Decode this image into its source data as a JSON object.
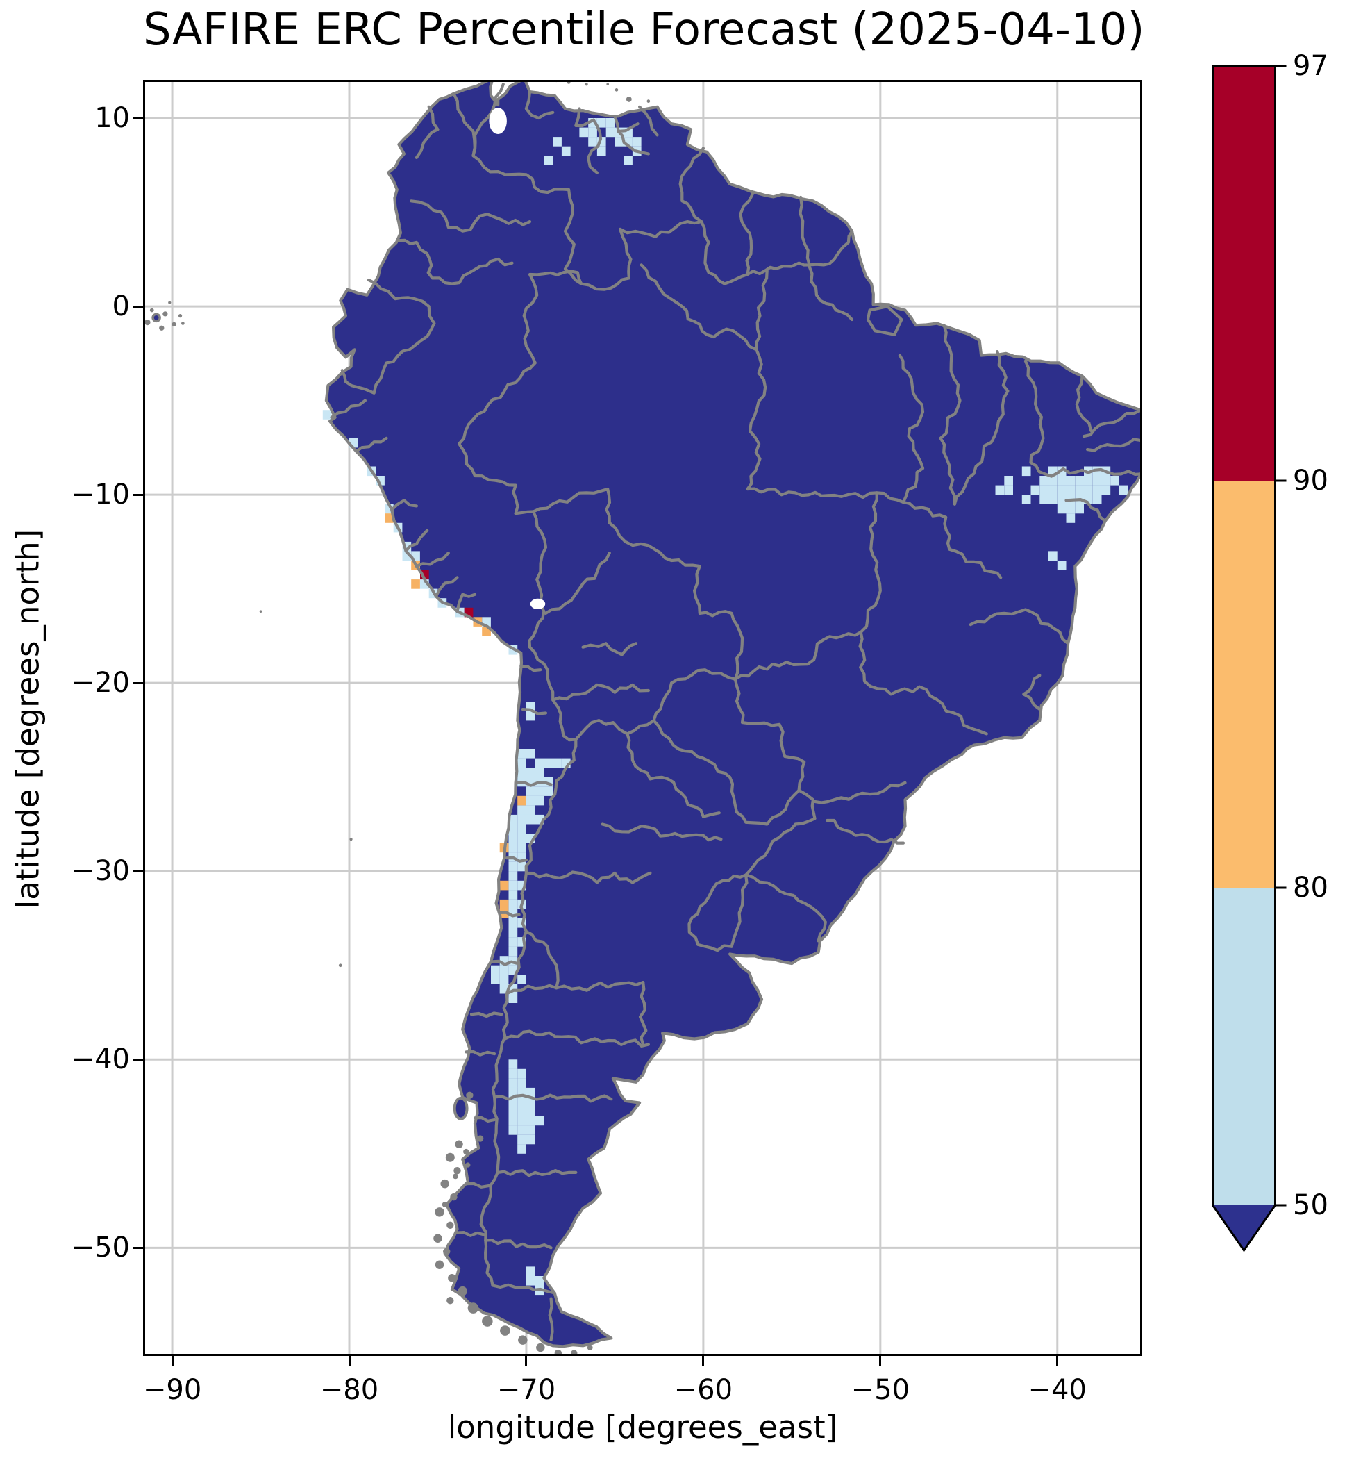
{
  "title": "SAFIRE ERC Percentile Forecast (2025-04-10)",
  "axes": {
    "xlabel": "longitude [degrees_east]",
    "ylabel": "latitude [degrees_north]",
    "xticks": [
      -90,
      -80,
      -70,
      -60,
      -50,
      -40
    ],
    "yticks": [
      10,
      0,
      -10,
      -20,
      -30,
      -40,
      -50
    ]
  },
  "colorbar": {
    "ticks": [
      97,
      90,
      80,
      50
    ],
    "segments": [
      {
        "from": 90,
        "to": 97,
        "color": "#a60028"
      },
      {
        "from": 80,
        "to": 90,
        "color": "#fbbc6d"
      },
      {
        "from": 50,
        "to": 80,
        "color": "#bfdeeb"
      }
    ],
    "under_color": "#2d318e",
    "extend": "min"
  },
  "chart_data": {
    "type": "heatmap",
    "subtype": "geographic-percentile-map",
    "title": "SAFIRE ERC Percentile Forecast (2025-04-10)",
    "xlabel": "longitude [degrees_east]",
    "ylabel": "latitude [degrees_north]",
    "xlim": [
      -91.65,
      -35.2
    ],
    "ylim": [
      -55.75,
      12.03
    ],
    "xticks": [
      -90,
      -80,
      -70,
      -60,
      -50,
      -40
    ],
    "yticks": [
      10,
      0,
      -10,
      -20,
      -30,
      -40,
      -50
    ],
    "grid": true,
    "legend_position": "right-colorbar",
    "levels": [
      50,
      80,
      90,
      97
    ],
    "colors": {
      "below_50": "#2d2f8b",
      "p50_80": "#c9e6f4",
      "p80_90": "#f6b163",
      "p90_97": "#a60028",
      "boundaries": "#828282",
      "gridline": "#cccccc"
    },
    "cell_size_deg": 0.5,
    "base_value_class": "below_50 (most of continent shaded dark navy, below 50th percentile)",
    "cells_50_80": [
      [
        -66.25,
        9.75
      ],
      [
        -65.75,
        9.75
      ],
      [
        -65.25,
        9.75
      ],
      [
        -66.75,
        9.25
      ],
      [
        -66.25,
        9.25
      ],
      [
        -65.25,
        9.25
      ],
      [
        -64.75,
        9.25
      ],
      [
        -64.25,
        9.25
      ],
      [
        -66.25,
        8.75
      ],
      [
        -65.75,
        8.75
      ],
      [
        -64.75,
        8.75
      ],
      [
        -64.25,
        8.75
      ],
      [
        -63.75,
        8.75
      ],
      [
        -68.25,
        8.75
      ],
      [
        -67.75,
        8.25
      ],
      [
        -65.75,
        8.25
      ],
      [
        -63.75,
        8.25
      ],
      [
        -68.75,
        7.75
      ],
      [
        -64.25,
        7.75
      ],
      [
        -41.75,
        -8.75
      ],
      [
        -40.25,
        -8.75
      ],
      [
        -39.75,
        -8.75
      ],
      [
        -38.25,
        -8.75
      ],
      [
        -37.75,
        -8.75
      ],
      [
        -37.25,
        -8.75
      ],
      [
        -42.75,
        -9.25
      ],
      [
        -40.75,
        -9.25
      ],
      [
        -40.25,
        -9.25
      ],
      [
        -39.75,
        -9.25
      ],
      [
        -39.25,
        -9.25
      ],
      [
        -38.75,
        -9.25
      ],
      [
        -38.25,
        -9.25
      ],
      [
        -37.75,
        -9.25
      ],
      [
        -37.25,
        -9.25
      ],
      [
        -36.75,
        -9.25
      ],
      [
        -43.25,
        -9.75
      ],
      [
        -42.75,
        -9.75
      ],
      [
        -41.25,
        -9.75
      ],
      [
        -40.75,
        -9.75
      ],
      [
        -40.25,
        -9.75
      ],
      [
        -39.75,
        -9.75
      ],
      [
        -39.25,
        -9.75
      ],
      [
        -38.75,
        -9.75
      ],
      [
        -38.25,
        -9.75
      ],
      [
        -37.75,
        -9.75
      ],
      [
        -37.25,
        -9.75
      ],
      [
        -36.25,
        -9.75
      ],
      [
        -41.75,
        -10.25
      ],
      [
        -40.75,
        -10.25
      ],
      [
        -40.25,
        -10.25
      ],
      [
        -39.75,
        -10.25
      ],
      [
        -39.25,
        -10.25
      ],
      [
        -38.75,
        -10.25
      ],
      [
        -38.25,
        -10.25
      ],
      [
        -37.75,
        -10.25
      ],
      [
        -39.75,
        -10.75
      ],
      [
        -39.25,
        -10.75
      ],
      [
        -38.75,
        -10.75
      ],
      [
        -39.25,
        -11.25
      ],
      [
        -40.25,
        -13.25
      ],
      [
        -39.75,
        -13.75
      ],
      [
        -81.25,
        -5.75
      ],
      [
        -79.75,
        -7.25
      ],
      [
        -78.75,
        -8.75
      ],
      [
        -78.25,
        -9.25
      ],
      [
        -77.75,
        -10.75
      ],
      [
        -77.25,
        -11.75
      ],
      [
        -76.75,
        -12.75
      ],
      [
        -76.75,
        -13.25
      ],
      [
        -76.25,
        -13.25
      ],
      [
        -75.75,
        -14.75
      ],
      [
        -75.25,
        -15.25
      ],
      [
        -74.75,
        -15.75
      ],
      [
        -73.75,
        -16.25
      ],
      [
        -72.25,
        -16.75
      ],
      [
        -70.75,
        -18.25
      ],
      [
        -69.75,
        -21.25
      ],
      [
        -69.75,
        -21.75
      ],
      [
        -70.25,
        -23.75
      ],
      [
        -69.75,
        -23.75
      ],
      [
        -70.25,
        -24.25
      ],
      [
        -69.25,
        -24.25
      ],
      [
        -68.75,
        -24.25
      ],
      [
        -68.25,
        -24.25
      ],
      [
        -67.75,
        -24.25
      ],
      [
        -70.25,
        -24.75
      ],
      [
        -69.75,
        -24.75
      ],
      [
        -69.25,
        -24.75
      ],
      [
        -70.25,
        -25.25
      ],
      [
        -69.75,
        -25.25
      ],
      [
        -69.25,
        -25.25
      ],
      [
        -68.75,
        -25.25
      ],
      [
        -69.75,
        -25.75
      ],
      [
        -69.25,
        -25.75
      ],
      [
        -68.75,
        -25.75
      ],
      [
        -69.75,
        -26.25
      ],
      [
        -69.25,
        -26.25
      ],
      [
        -70.25,
        -26.75
      ],
      [
        -69.75,
        -26.75
      ],
      [
        -70.75,
        -27.25
      ],
      [
        -70.25,
        -27.25
      ],
      [
        -69.75,
        -27.25
      ],
      [
        -69.25,
        -27.25
      ],
      [
        -70.75,
        -27.75
      ],
      [
        -70.25,
        -27.75
      ],
      [
        -70.75,
        -28.25
      ],
      [
        -70.25,
        -28.25
      ],
      [
        -69.75,
        -28.25
      ],
      [
        -70.75,
        -28.75
      ],
      [
        -70.25,
        -28.75
      ],
      [
        -70.75,
        -29.25
      ],
      [
        -70.25,
        -29.25
      ],
      [
        -70.75,
        -29.75
      ],
      [
        -70.25,
        -29.75
      ],
      [
        -70.75,
        -30.25
      ],
      [
        -70.75,
        -30.75
      ],
      [
        -70.25,
        -30.75
      ],
      [
        -70.75,
        -31.25
      ],
      [
        -70.75,
        -31.75
      ],
      [
        -70.25,
        -31.75
      ],
      [
        -70.75,
        -32.25
      ],
      [
        -70.75,
        -32.75
      ],
      [
        -70.25,
        -32.75
      ],
      [
        -70.75,
        -33.25
      ],
      [
        -70.75,
        -33.75
      ],
      [
        -70.25,
        -33.75
      ],
      [
        -70.75,
        -34.25
      ],
      [
        -71.25,
        -34.75
      ],
      [
        -70.75,
        -34.75
      ],
      [
        -71.75,
        -35.25
      ],
      [
        -71.25,
        -35.25
      ],
      [
        -70.75,
        -35.25
      ],
      [
        -71.75,
        -35.75
      ],
      [
        -71.25,
        -35.75
      ],
      [
        -70.25,
        -35.75
      ],
      [
        -71.25,
        -36.25
      ],
      [
        -70.75,
        -36.25
      ],
      [
        -70.75,
        -36.75
      ],
      [
        -70.75,
        -40.25
      ],
      [
        -70.75,
        -40.75
      ],
      [
        -70.25,
        -40.75
      ],
      [
        -70.75,
        -41.25
      ],
      [
        -70.25,
        -41.25
      ],
      [
        -70.75,
        -41.75
      ],
      [
        -70.25,
        -41.75
      ],
      [
        -69.75,
        -41.75
      ],
      [
        -70.75,
        -42.25
      ],
      [
        -70.25,
        -42.25
      ],
      [
        -69.75,
        -42.25
      ],
      [
        -70.75,
        -42.75
      ],
      [
        -70.25,
        -42.75
      ],
      [
        -69.75,
        -42.75
      ],
      [
        -70.75,
        -43.25
      ],
      [
        -70.25,
        -43.25
      ],
      [
        -69.75,
        -43.25
      ],
      [
        -69.25,
        -43.25
      ],
      [
        -70.75,
        -43.75
      ],
      [
        -70.25,
        -43.75
      ],
      [
        -69.75,
        -43.75
      ],
      [
        -70.25,
        -44.25
      ],
      [
        -69.75,
        -44.25
      ],
      [
        -70.25,
        -44.75
      ],
      [
        -69.75,
        -51.25
      ],
      [
        -69.75,
        -51.75
      ],
      [
        -69.25,
        -51.75
      ],
      [
        -69.25,
        -52.25
      ]
    ],
    "cells_80_90": [
      [
        -77.75,
        -11.25
      ],
      [
        -76.25,
        -13.75
      ],
      [
        -76.25,
        -14.75
      ],
      [
        -72.75,
        -16.75
      ],
      [
        -72.25,
        -17.25
      ],
      [
        -70.25,
        -26.25
      ],
      [
        -71.25,
        -28.75
      ],
      [
        -71.25,
        -30.75
      ],
      [
        -71.25,
        -31.75
      ],
      [
        -71.25,
        -32.25
      ]
    ],
    "cells_90_97": [
      [
        -75.75,
        -14.25
      ],
      [
        -73.25,
        -16.25
      ]
    ]
  }
}
